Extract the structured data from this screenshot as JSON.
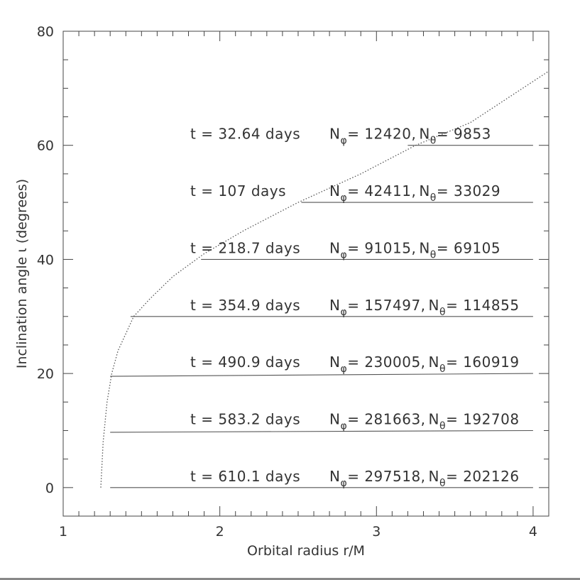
{
  "chart_data": {
    "type": "line",
    "title": "",
    "xlabel": "Orbital radius r/M",
    "ylabel": "Inclination angle ι  (degrees)",
    "xlim": [
      1,
      4.1
    ],
    "ylim": [
      -5,
      80
    ],
    "x_ticks": [
      1,
      2,
      3,
      4
    ],
    "y_ticks": [
      0,
      20,
      40,
      60,
      80
    ],
    "x_tick_labels": [
      "1",
      "2",
      "3",
      "4"
    ],
    "y_tick_labels": [
      "0",
      "20",
      "40",
      "60",
      "80"
    ],
    "grid": false,
    "legend": "none",
    "series": [
      {
        "style": "dotted",
        "x": [
          1.24,
          1.255,
          1.28,
          1.31,
          1.35,
          1.4,
          1.45,
          1.55,
          1.7,
          1.9,
          2.15,
          2.5,
          2.9,
          3.25,
          3.6,
          4.1
        ],
        "y": [
          0,
          8,
          15,
          20,
          24,
          27,
          30,
          33,
          37,
          41,
          45,
          50,
          55,
          60,
          64,
          73
        ]
      },
      {
        "style": "solid",
        "x": [
          3.2,
          4.0
        ],
        "y": [
          60,
          60
        ]
      },
      {
        "style": "solid",
        "x": [
          2.52,
          4.0
        ],
        "y": [
          50,
          50
        ]
      },
      {
        "style": "solid",
        "x": [
          1.88,
          4.0
        ],
        "y": [
          40,
          40
        ]
      },
      {
        "style": "solid",
        "x": [
          1.43,
          4.0
        ],
        "y": [
          30,
          30
        ]
      },
      {
        "style": "solid",
        "x": [
          1.3,
          4.0
        ],
        "y": [
          19.5,
          20
        ]
      },
      {
        "style": "solid",
        "x": [
          1.3,
          4.0
        ],
        "y": [
          9.7,
          10
        ]
      },
      {
        "style": "solid",
        "x": [
          1.3,
          4.0
        ],
        "y": [
          0,
          0
        ]
      }
    ],
    "annotations": [
      {
        "y": 60,
        "t": "t = 32.64 days",
        "nphi": "12420",
        "ntheta": "9853"
      },
      {
        "y": 50,
        "t": "t = 107 days",
        "nphi": "42411",
        "ntheta": "33029"
      },
      {
        "y": 40,
        "t": "t = 218.7 days",
        "nphi": "91015",
        "ntheta": "69105"
      },
      {
        "y": 30,
        "t": "t = 354.9 days",
        "nphi": "157497",
        "ntheta": "114855"
      },
      {
        "y": 20,
        "t": "t = 490.9 days",
        "nphi": "230005",
        "ntheta": "160919"
      },
      {
        "y": 10,
        "t": "t = 583.2 days",
        "nphi": "281663",
        "ntheta": "192708"
      },
      {
        "y": 0,
        "t": "t = 610.1 days",
        "nphi": "297518",
        "ntheta": "202126"
      }
    ],
    "symbols": {
      "n": "N",
      "phi": "φ",
      "theta": "θ",
      "eq": "= ",
      "sep": ", "
    },
    "colors": {
      "axis": "#444444",
      "curve": "#555555",
      "text": "#333333"
    }
  }
}
